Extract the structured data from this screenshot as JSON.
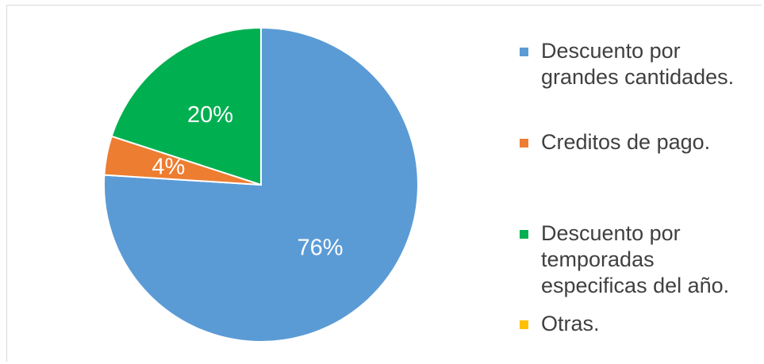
{
  "chart_data": {
    "type": "pie",
    "title": "",
    "labels": [
      "Descuento por grandes cantidades.",
      "Creditos de pago.",
      "Descuento por temporadas especificas del año.",
      "Otras."
    ],
    "values": [
      76,
      4,
      20,
      0
    ],
    "value_labels": [
      "76%",
      "4%",
      "20%",
      ""
    ],
    "colors": [
      "#5B9BD5",
      "#ED7D31",
      "#00B050",
      "#FFC000"
    ],
    "start_angle_deg": 0,
    "direction": "clockwise",
    "legend_position": "right"
  },
  "legend": {
    "items": [
      {
        "lines": [
          "Descuento por",
          "grandes cantidades."
        ],
        "color": "#5B9BD5"
      },
      {
        "lines": [
          "Creditos de pago."
        ],
        "color": "#ED7D31"
      },
      {
        "lines": [
          "Descuento por",
          "temporadas",
          "especificas del año."
        ],
        "color": "#00B050"
      },
      {
        "lines": [
          "Otras."
        ],
        "color": "#FFC000"
      }
    ]
  }
}
